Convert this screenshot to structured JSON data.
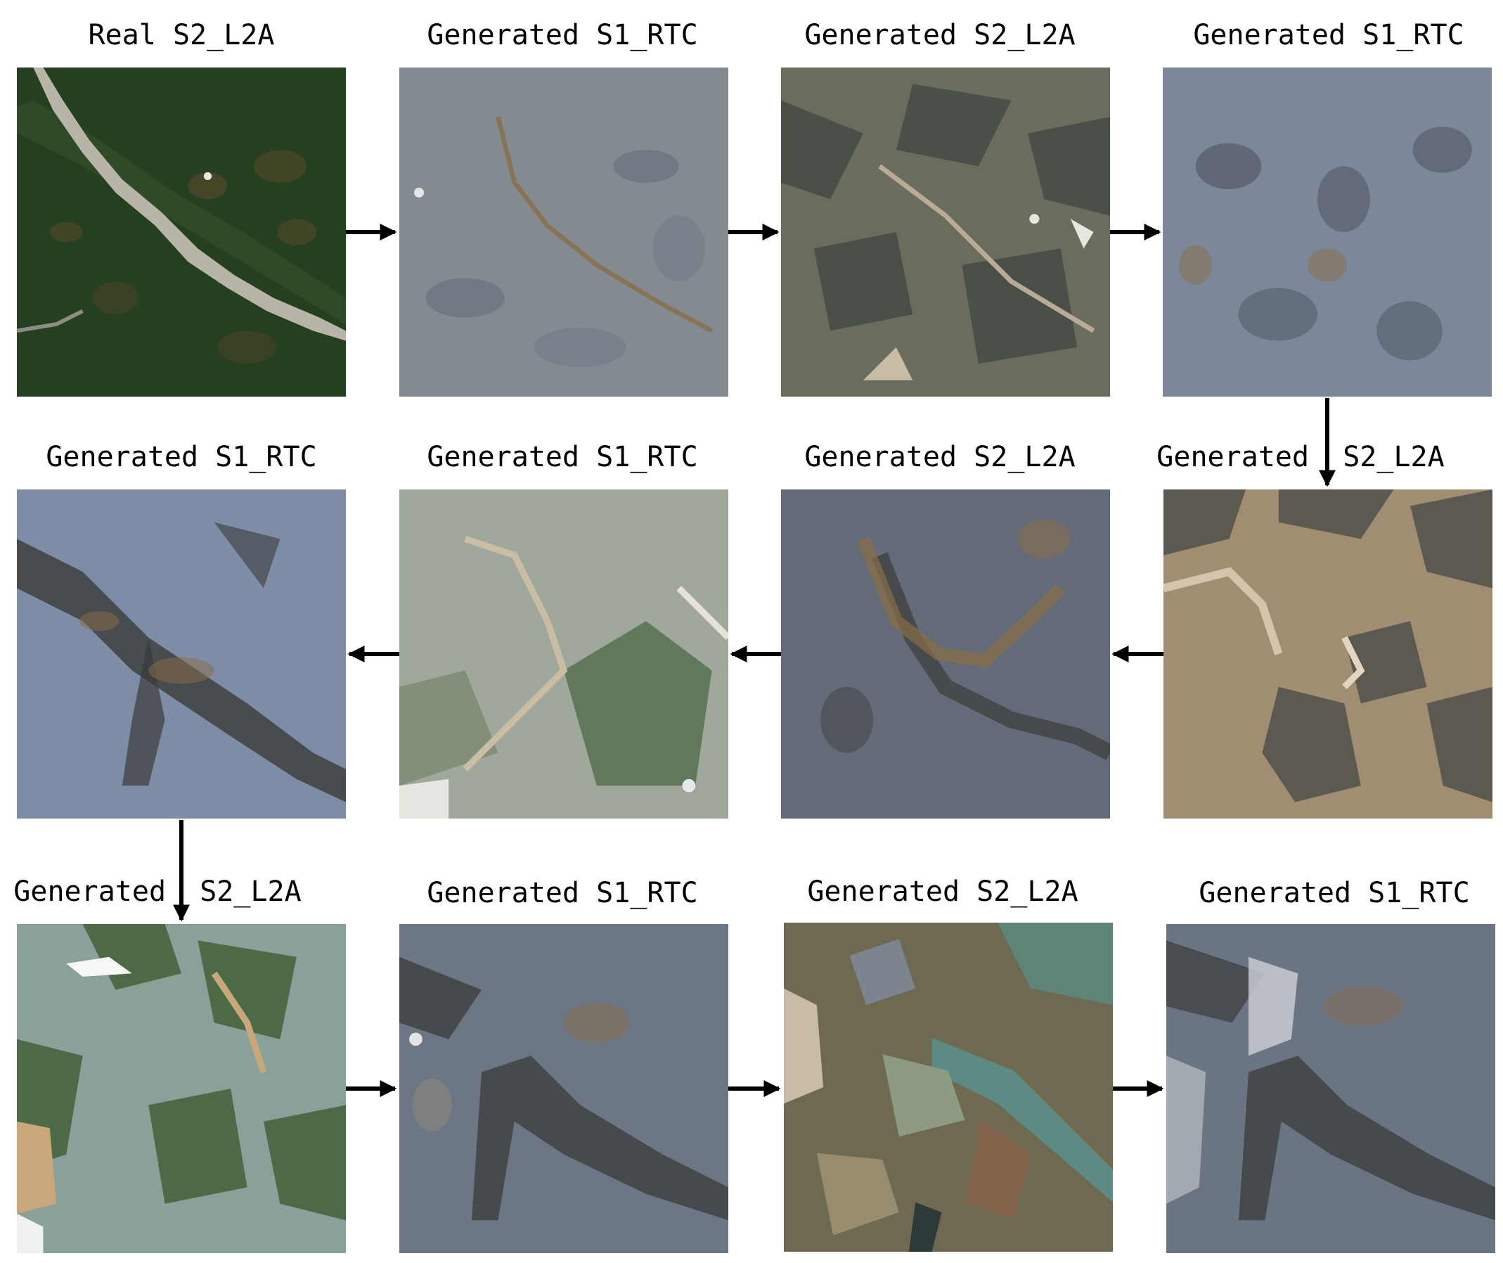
{
  "panels": [
    {
      "label": "Real S2_L2A",
      "kind": "optical"
    },
    {
      "label": "Generated S1_RTC",
      "kind": "sar"
    },
    {
      "label": "Generated S2_L2A",
      "kind": "optical"
    },
    {
      "label": "Generated S1_RTC",
      "kind": "sar"
    },
    {
      "label": "Generated S1_RTC",
      "kind": "sar"
    },
    {
      "label": "Generated S1_RTC",
      "kind": "sar"
    },
    {
      "label": "Generated S2_L2A",
      "kind": "optical"
    },
    {
      "label": "Generated  S2_L2A",
      "kind": "optical"
    },
    {
      "label": "Generated  S2_L2A",
      "kind": "optical"
    },
    {
      "label": "Generated S1_RTC",
      "kind": "sar"
    },
    {
      "label": "Generated S2_L2A",
      "kind": "optical"
    },
    {
      "label": "Generated S1_RTC",
      "kind": "sar"
    }
  ],
  "colors": {
    "arrow": "#000000",
    "forest": "#24401f",
    "river": "#b9b4a8",
    "sar_base": "#7d8796",
    "sar_dark": "#3b3c3a",
    "sar_brown": "#8a6d45",
    "opt_base": "#6a6d5e",
    "opt_dark": "#4a5048",
    "opt_light": "#b9ab95",
    "pale_green": "#9fa89a",
    "deep_green": "#4c6a46",
    "tan": "#a08d72",
    "water": "#5d8a82"
  }
}
